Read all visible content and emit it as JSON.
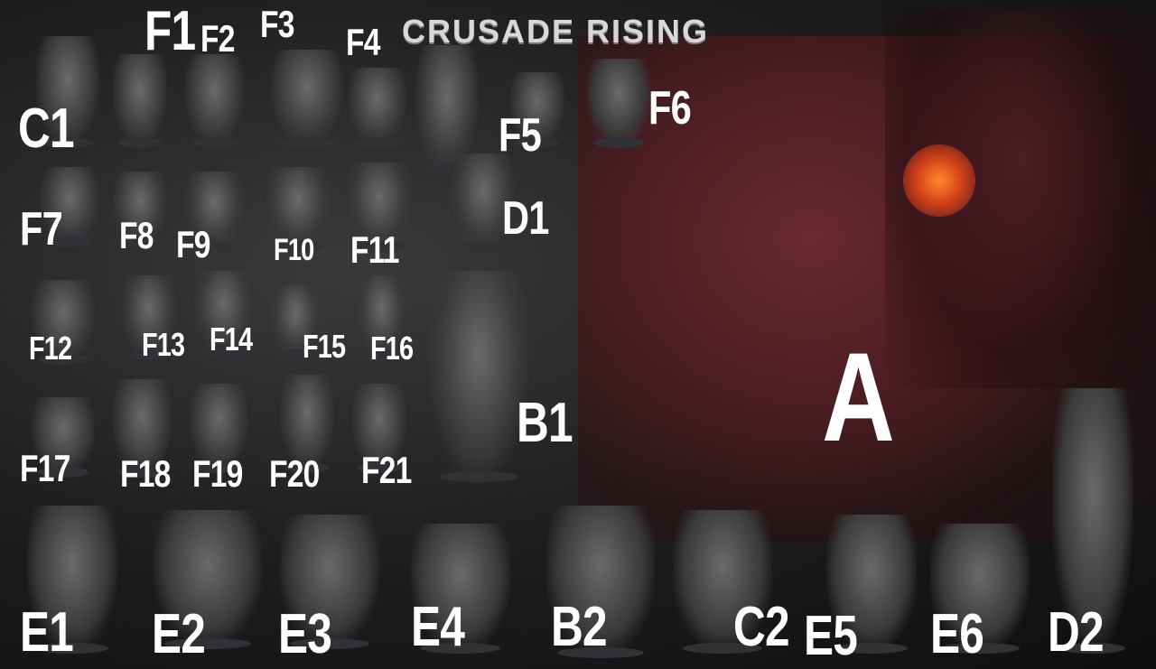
{
  "title": "CRUSADE RISING",
  "labels": {
    "F1": "F1",
    "F2": "F2",
    "F3": "F3",
    "F4": "F4",
    "F5": "F5",
    "F6": "F6",
    "F7": "F7",
    "F8": "F8",
    "F9": "F9",
    "F10": "F10",
    "F11": "F11",
    "F12": "F12",
    "F13": "F13",
    "F14": "F14",
    "F15": "F15",
    "F16": "F16",
    "F17": "F17",
    "F18": "F18",
    "F19": "F19",
    "F20": "F20",
    "F21": "F21",
    "C1": "C1",
    "C2": "C2",
    "D1": "D1",
    "D2": "D2",
    "B1": "B1",
    "B2": "B2",
    "A": "A",
    "E1": "E1",
    "E2": "E2",
    "E3": "E3",
    "E4": "E4",
    "E5": "E5",
    "E6": "E6"
  },
  "colors": {
    "background": "#1c1c1c",
    "dragon": "#6a2a2e",
    "fire": "#ff8a2a",
    "label": "#ffffff"
  }
}
